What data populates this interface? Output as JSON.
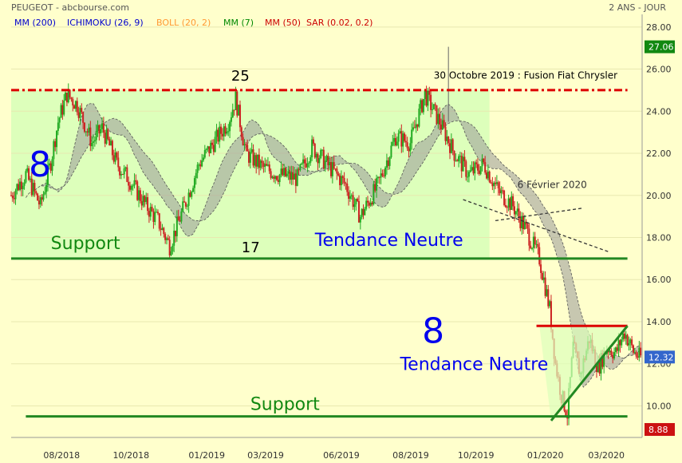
{
  "header": {
    "title": "PEUGEOT - abcbourse.com",
    "period": "2 ANS - JOUR"
  },
  "indicators": [
    {
      "label": "MM (200)",
      "color": "#0000cc"
    },
    {
      "label": "ICHIMOKU (26, 9)",
      "color": "#0000cc"
    },
    {
      "label": "BOLL (20, 2)",
      "color": "#ff9933"
    },
    {
      "label": "MM (7)",
      "color": "#008800"
    },
    {
      "label": "MM (50)",
      "color": "#cc0000"
    },
    {
      "label": "SAR (0.02, 0.2)",
      "color": "#cc0000"
    }
  ],
  "colors": {
    "background": "#ffffcc",
    "range_zone": "#ddffbb",
    "support": "#228822",
    "resistance": "#dd0000",
    "up_candle": "#22aa22",
    "down_candle": "#cc2222",
    "cloud": "#999999",
    "annotation_blue": "#0000ee"
  },
  "chart_data": {
    "type": "line",
    "chart_kind": "candlestick",
    "ylim": [
      8.5,
      28.6
    ],
    "y_ticks": [
      "28.00",
      "26.00",
      "24.00",
      "22.00",
      "20.00",
      "18.00",
      "16.00",
      "14.00",
      "12.00",
      "10.00"
    ],
    "x_ticks": [
      "08/2018",
      "10/2018",
      "01/2019",
      "03/2019",
      "06/2019",
      "08/2019",
      "10/2019",
      "01/2020",
      "03/2020"
    ],
    "price_path": [
      {
        "i": 0,
        "y": 20.0
      },
      {
        "i": 10,
        "y": 21.0
      },
      {
        "i": 20,
        "y": 19.5
      },
      {
        "i": 27,
        "y": 21.6
      },
      {
        "i": 32,
        "y": 23.5
      },
      {
        "i": 38,
        "y": 24.8
      },
      {
        "i": 45,
        "y": 24.3
      },
      {
        "i": 55,
        "y": 22.5
      },
      {
        "i": 62,
        "y": 23.2
      },
      {
        "i": 72,
        "y": 21.5
      },
      {
        "i": 80,
        "y": 20.8
      },
      {
        "i": 92,
        "y": 19.5
      },
      {
        "i": 100,
        "y": 18.8
      },
      {
        "i": 108,
        "y": 17.6
      },
      {
        "i": 118,
        "y": 19.5
      },
      {
        "i": 128,
        "y": 21.5
      },
      {
        "i": 138,
        "y": 22.5
      },
      {
        "i": 148,
        "y": 23.5
      },
      {
        "i": 153,
        "y": 24.6
      },
      {
        "i": 160,
        "y": 22.0
      },
      {
        "i": 172,
        "y": 21.3
      },
      {
        "i": 182,
        "y": 21.0
      },
      {
        "i": 195,
        "y": 20.8
      },
      {
        "i": 205,
        "y": 22.3
      },
      {
        "i": 215,
        "y": 21.5
      },
      {
        "i": 228,
        "y": 20.5
      },
      {
        "i": 238,
        "y": 19.0
      },
      {
        "i": 250,
        "y": 20.5
      },
      {
        "i": 262,
        "y": 22.8
      },
      {
        "i": 272,
        "y": 22.5
      },
      {
        "i": 282,
        "y": 24.8
      },
      {
        "i": 292,
        "y": 23.5
      },
      {
        "i": 302,
        "y": 22.0
      },
      {
        "i": 312,
        "y": 21.0
      },
      {
        "i": 322,
        "y": 21.5
      },
      {
        "i": 332,
        "y": 20.2
      },
      {
        "i": 342,
        "y": 19.5
      },
      {
        "i": 350,
        "y": 18.5
      },
      {
        "i": 356,
        "y": 17.6
      },
      {
        "i": 360,
        "y": 17.0
      },
      {
        "i": 363,
        "y": 16.0
      },
      {
        "i": 367,
        "y": 14.6
      },
      {
        "i": 371,
        "y": 12.0
      },
      {
        "i": 375,
        "y": 10.5
      },
      {
        "i": 379,
        "y": 9.6
      },
      {
        "i": 383,
        "y": 12.8
      },
      {
        "i": 388,
        "y": 11.5
      },
      {
        "i": 394,
        "y": 13.2
      },
      {
        "i": 400,
        "y": 11.8
      },
      {
        "i": 406,
        "y": 12.8
      },
      {
        "i": 412,
        "y": 12.5
      },
      {
        "i": 418,
        "y": 13.5
      },
      {
        "i": 424,
        "y": 12.6
      },
      {
        "i": 428,
        "y": 12.32
      }
    ],
    "n_candles": 430,
    "x_domain": [
      0,
      430
    ],
    "spike": {
      "i": 298,
      "high": 27.06,
      "low": 23.5
    },
    "range_zone": {
      "from": 0,
      "to": 326,
      "low": 17.0,
      "high": 25.0
    },
    "lines": [
      {
        "name": "resistance",
        "kind": "dashdot",
        "x": [
          0,
          420
        ],
        "y": [
          25.0,
          25.0
        ],
        "color": "#dd0000"
      },
      {
        "name": "support_upper",
        "kind": "solid",
        "x": [
          0,
          420
        ],
        "y": [
          17.0,
          17.0
        ],
        "color": "#228822"
      },
      {
        "name": "support_lower",
        "kind": "solid",
        "x": [
          10,
          420
        ],
        "y": [
          9.5,
          9.5
        ],
        "color": "#228822"
      },
      {
        "name": "resistance_short",
        "kind": "solid",
        "x": [
          358,
          420
        ],
        "y": [
          13.8,
          13.8
        ],
        "color": "#dd0000"
      },
      {
        "name": "uptrend",
        "kind": "solid",
        "x": [
          368,
          420
        ],
        "y": [
          9.3,
          13.8
        ],
        "color": "#228822"
      },
      {
        "name": "downtrend1",
        "kind": "dashed",
        "x": [
          308,
          408
        ],
        "y": [
          19.8,
          17.3
        ],
        "color": "#333333"
      },
      {
        "name": "downtrend2",
        "kind": "dashed",
        "x": [
          330,
          390
        ],
        "y": [
          18.8,
          19.4
        ],
        "color": "#333333"
      }
    ],
    "price_labels": [
      {
        "value": 27.06,
        "text": "27.06",
        "color": "#118811"
      },
      {
        "value": 12.32,
        "text": "12.32",
        "color": "#3366cc"
      },
      {
        "value": 8.88,
        "text": "8.88",
        "color": "#cc1111"
      }
    ],
    "annotations": [
      {
        "text": "25",
        "x": 150,
        "y": 25.45,
        "color": "#000000",
        "size": 18
      },
      {
        "text": "30 Octobre 2019 : Fusion Fiat Chrysler",
        "x": 288,
        "y": 25.55,
        "color": "#000000",
        "size": 12
      },
      {
        "text": "8",
        "x": 12,
        "y": 20.9,
        "color": "#0000ee",
        "size": 44
      },
      {
        "text": "Support",
        "x": 27,
        "y": 17.45,
        "color": "#118811",
        "size": 22
      },
      {
        "text": "17",
        "x": 157,
        "y": 17.3,
        "color": "#000000",
        "size": 18
      },
      {
        "text": "Tendance Neutre",
        "x": 207,
        "y": 17.6,
        "color": "#0000ee",
        "size": 22
      },
      {
        "text": "6 Février 2020",
        "x": 345,
        "y": 20.35,
        "color": "#333333",
        "size": 12
      },
      {
        "text": "8",
        "x": 280,
        "y": 13.0,
        "color": "#0000ee",
        "size": 44
      },
      {
        "text": "Tendance Neutre",
        "x": 265,
        "y": 11.7,
        "color": "#0000ee",
        "size": 22
      },
      {
        "text": "Support",
        "x": 163,
        "y": 9.8,
        "color": "#118811",
        "size": 22
      }
    ]
  }
}
